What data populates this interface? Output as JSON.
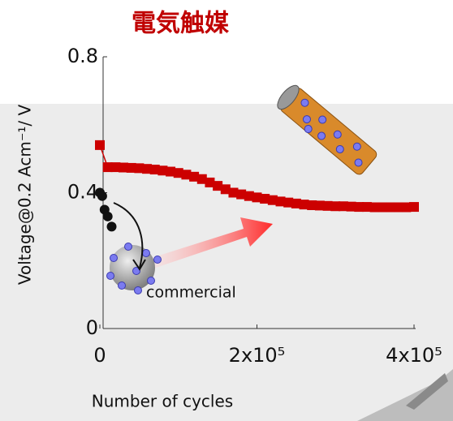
{
  "chart_data": {
    "type": "scatter",
    "title": "電気触媒",
    "xlabel": "Number of cycles",
    "ylabel": "Voltage@0.2 Acm⁻¹/ V",
    "annotation": "commercial",
    "xlim": [
      0,
      400000
    ],
    "ylim": [
      0,
      0.8
    ],
    "xticks": [
      0,
      {
        "value": 200000,
        "label": "2x10⁵"
      },
      {
        "value": 400000,
        "label": "4x10⁵"
      }
    ],
    "yticks": [
      0,
      0.4,
      0.8
    ],
    "series": [
      {
        "color": "#cc0000",
        "marker": "square",
        "x": [
          0,
          10000,
          20000,
          30000,
          40000,
          50000,
          60000,
          70000,
          80000,
          90000,
          100000,
          110000,
          120000,
          130000,
          140000,
          150000,
          160000,
          170000,
          180000,
          190000,
          200000,
          210000,
          220000,
          230000,
          240000,
          250000,
          260000,
          270000,
          280000,
          290000,
          300000,
          310000,
          320000,
          330000,
          340000,
          350000,
          360000,
          370000,
          380000,
          390000,
          400000
        ],
        "values": [
          0.54,
          0.475,
          0.475,
          0.474,
          0.473,
          0.472,
          0.47,
          0.468,
          0.465,
          0.462,
          0.458,
          0.453,
          0.447,
          0.44,
          0.43,
          0.42,
          0.41,
          0.4,
          0.395,
          0.39,
          0.386,
          0.382,
          0.378,
          0.374,
          0.371,
          0.368,
          0.365,
          0.363,
          0.362,
          0.361,
          0.36,
          0.36,
          0.359,
          0.358,
          0.358,
          0.357,
          0.357,
          0.357,
          0.357,
          0.357,
          0.358
        ]
      },
      {
        "color": "#111111",
        "marker": "circle",
        "x": [
          0,
          3000,
          6000,
          10000,
          15000
        ],
        "values": [
          0.4,
          0.39,
          0.35,
          0.33,
          0.3
        ]
      }
    ]
  }
}
